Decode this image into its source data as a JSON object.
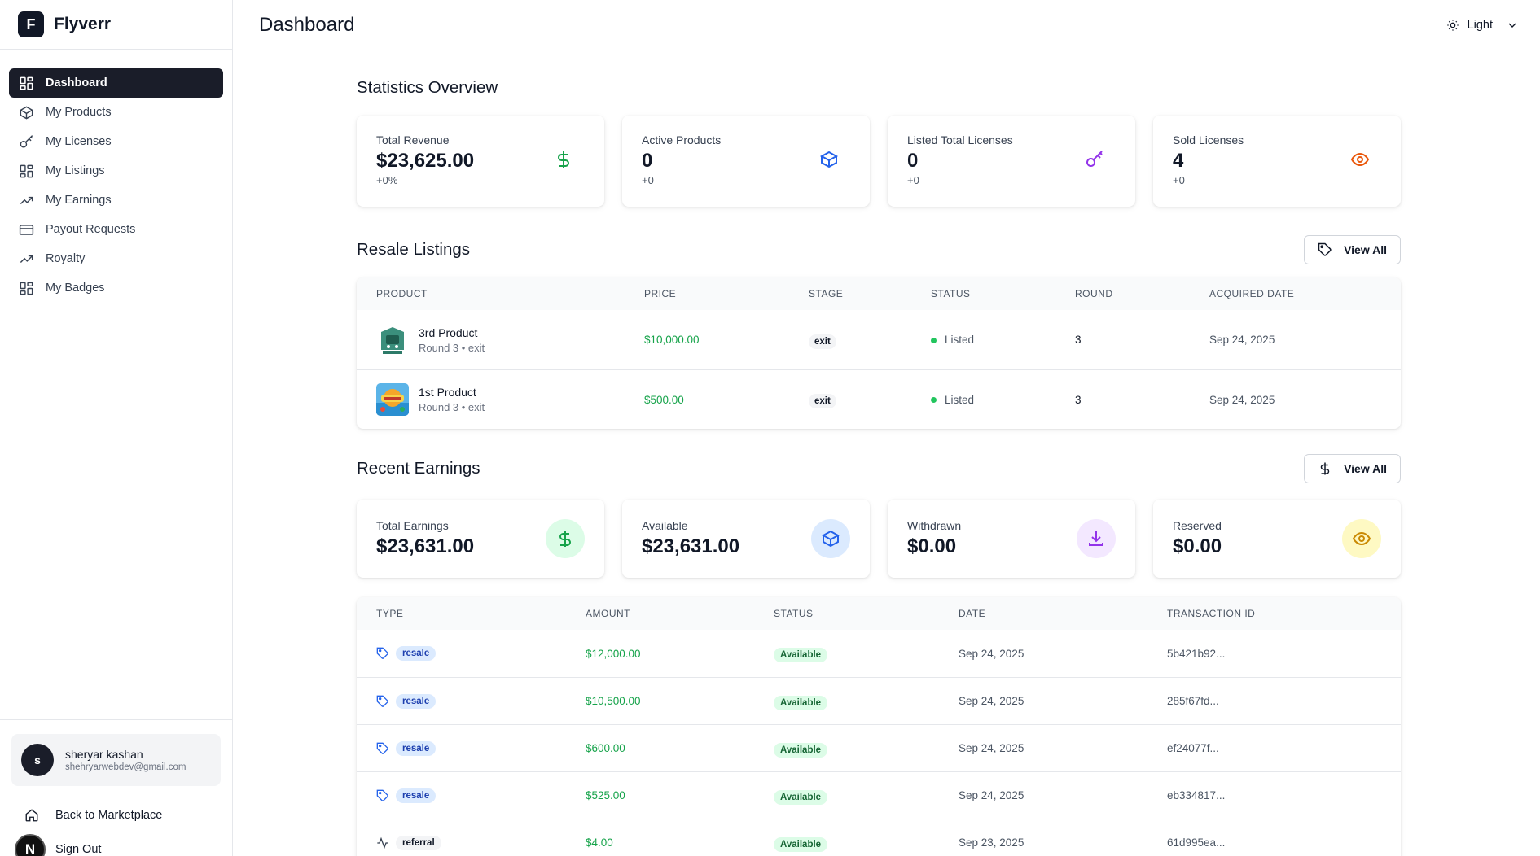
{
  "brand": {
    "logo_letter": "F",
    "name": "Flyverr"
  },
  "nav": [
    {
      "label": "Dashboard",
      "icon": "grid-icon",
      "active": true
    },
    {
      "label": "My Products",
      "icon": "box-icon"
    },
    {
      "label": "My Licenses",
      "icon": "key-icon"
    },
    {
      "label": "My Listings",
      "icon": "grid-icon"
    },
    {
      "label": "My Earnings",
      "icon": "trending-up-icon"
    },
    {
      "label": "Payout Requests",
      "icon": "credit-card-icon"
    },
    {
      "label": "Royalty",
      "icon": "trending-up-icon"
    },
    {
      "label": "My Badges",
      "icon": "grid-icon"
    }
  ],
  "user": {
    "initial": "s",
    "name": "sheryar kashan",
    "email": "shehryarwebdev@gmail.com"
  },
  "bottom": {
    "back_label": "Back to Marketplace",
    "signout_label": "Sign Out",
    "n_letter": "N"
  },
  "header": {
    "title": "Dashboard",
    "theme_label": "Light"
  },
  "stats": {
    "title": "Statistics Overview",
    "cards": [
      {
        "label": "Total Revenue",
        "value": "$23,625.00",
        "sub": "+0%",
        "icon": "dollar-icon",
        "color": "#16a34a"
      },
      {
        "label": "Active Products",
        "value": "0",
        "sub": "+0",
        "icon": "box-icon",
        "color": "#2563eb"
      },
      {
        "label": "Listed Total Licenses",
        "value": "0",
        "sub": "+0",
        "icon": "key-icon",
        "color": "#9333ea"
      },
      {
        "label": "Sold Licenses",
        "value": "4",
        "sub": "+0",
        "icon": "eye-icon",
        "color": "#ea580c"
      }
    ]
  },
  "resale": {
    "title": "Resale Listings",
    "view_all": "View All",
    "columns": [
      "Product",
      "Price",
      "Stage",
      "Status",
      "Round",
      "Acquired Date"
    ],
    "rows": [
      {
        "name": "3rd Product",
        "sub": "Round 3 • exit",
        "price": "$10,000.00",
        "stage": "exit",
        "status": "Listed",
        "round": "3",
        "date": "Sep 24, 2025"
      },
      {
        "name": "1st Product",
        "sub": "Round 3 • exit",
        "price": "$500.00",
        "stage": "exit",
        "status": "Listed",
        "round": "3",
        "date": "Sep 24, 2025"
      }
    ]
  },
  "earnings": {
    "title": "Recent Earnings",
    "view_all": "View All",
    "cards": [
      {
        "label": "Total Earnings",
        "value": "$23,631.00",
        "icon": "dollar-icon",
        "color": "#16a34a",
        "bg": "#dcfce7"
      },
      {
        "label": "Available",
        "value": "$23,631.00",
        "icon": "box-icon",
        "color": "#2563eb",
        "bg": "#dbeafe"
      },
      {
        "label": "Withdrawn",
        "value": "$0.00",
        "icon": "download-icon",
        "color": "#9333ea",
        "bg": "#f3e8ff"
      },
      {
        "label": "Reserved",
        "value": "$0.00",
        "icon": "eye-icon",
        "color": "#ca8a04",
        "bg": "#fef9c3"
      }
    ],
    "columns": [
      "Type",
      "Amount",
      "Status",
      "Date",
      "Transaction ID"
    ],
    "rows": [
      {
        "type": "resale",
        "amount": "$12,000.00",
        "status": "Available",
        "date": "Sep 24, 2025",
        "txn": "5b421b92..."
      },
      {
        "type": "resale",
        "amount": "$10,500.00",
        "status": "Available",
        "date": "Sep 24, 2025",
        "txn": "285f67fd..."
      },
      {
        "type": "resale",
        "amount": "$600.00",
        "status": "Available",
        "date": "Sep 24, 2025",
        "txn": "ef24077f..."
      },
      {
        "type": "resale",
        "amount": "$525.00",
        "status": "Available",
        "date": "Sep 24, 2025",
        "txn": "eb334817..."
      },
      {
        "type": "referral",
        "amount": "$4.00",
        "status": "Available",
        "date": "Sep 23, 2025",
        "txn": "61d995ea..."
      }
    ]
  }
}
